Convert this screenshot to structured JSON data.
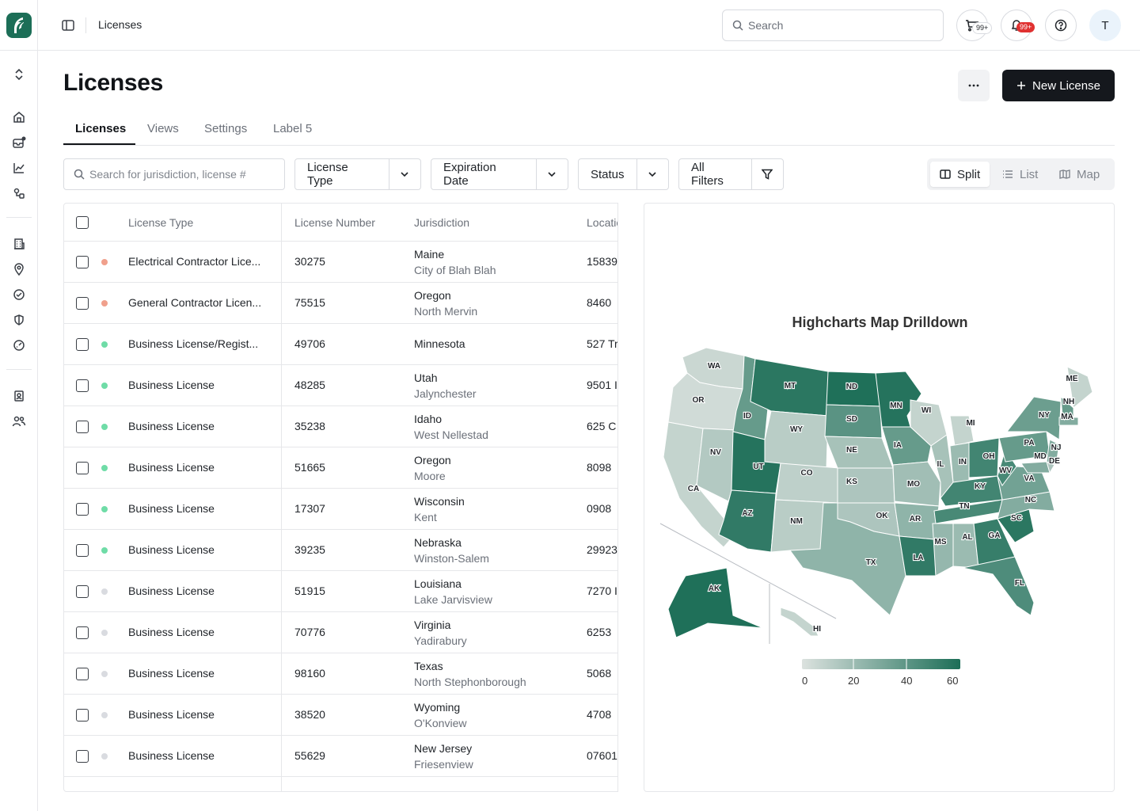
{
  "topbar": {
    "breadcrumb": "Licenses",
    "search_placeholder": "Search",
    "cart_badge": "99+",
    "notif_badge": "99+",
    "avatar_initial": "T"
  },
  "page": {
    "title": "Licenses",
    "new_button": "New License"
  },
  "tabs": [
    {
      "label": "Licenses",
      "active": true
    },
    {
      "label": "Views"
    },
    {
      "label": "Settings"
    },
    {
      "label": "Label 5"
    }
  ],
  "filters": {
    "search_placeholder": "Search for jurisdiction, license #",
    "license_type": "License Type",
    "expiration_date": "Expiration Date",
    "status": "Status",
    "all_filters": "All Filters"
  },
  "view_toggle": {
    "split": "Split",
    "list": "List",
    "map": "Map",
    "active": "split"
  },
  "table": {
    "headers": [
      "License Type",
      "License Number",
      "Jurisdiction",
      "Location"
    ],
    "rows": [
      {
        "status": "#f0a08c",
        "type": "Electrical Contractor Lice...",
        "number": "30275",
        "state": "Maine",
        "city": "City of Blah Blah",
        "location": "15839"
      },
      {
        "status": "#f0a08c",
        "type": "General Contractor Licen...",
        "number": "75515",
        "state": "Oregon",
        "city": "North Mervin",
        "location": "8460"
      },
      {
        "status": "#6fdca7",
        "type": "Business License/Regist...",
        "number": "49706",
        "state": "Minnesota",
        "city": "",
        "location": "527 Tr"
      },
      {
        "status": "#6fdca7",
        "type": "Business License",
        "number": "48285",
        "state": "Utah",
        "city": "Jalynchester",
        "location": "9501 I"
      },
      {
        "status": "#6fdca7",
        "type": "Business License",
        "number": "35238",
        "state": "Idaho",
        "city": "West Nellestad",
        "location": "625 C"
      },
      {
        "status": "#6fdca7",
        "type": "Business License",
        "number": "51665",
        "state": "Oregon",
        "city": "Moore",
        "location": "8098"
      },
      {
        "status": "#6fdca7",
        "type": "Business License",
        "number": "17307",
        "state": "Wisconsin",
        "city": "Kent",
        "location": "0908"
      },
      {
        "status": "#6fdca7",
        "type": "Business License",
        "number": "39235",
        "state": "Nebraska",
        "city": "Winston-Salem",
        "location": "29923"
      },
      {
        "status": "#d9dbe0",
        "type": "Business License",
        "number": "51915",
        "state": "Louisiana",
        "city": "Lake Jarvisview",
        "location": "7270 I"
      },
      {
        "status": "#d9dbe0",
        "type": "Business License",
        "number": "70776",
        "state": "Virginia",
        "city": "Yadirabury",
        "location": "6253"
      },
      {
        "status": "#d9dbe0",
        "type": "Business License",
        "number": "98160",
        "state": "Texas",
        "city": "North Stephonborough",
        "location": "5068"
      },
      {
        "status": "#d9dbe0",
        "type": "Business License",
        "number": "38520",
        "state": "Wyoming",
        "city": "O'Konview",
        "location": "4708"
      },
      {
        "status": "#d9dbe0",
        "type": "Business License",
        "number": "55629",
        "state": "New Jersey",
        "city": "Friesenview",
        "location": "07601"
      }
    ]
  },
  "map": {
    "title": "Highcharts Map Drilldown",
    "legend_ticks": [
      "0",
      "20",
      "40",
      "60"
    ],
    "states": [
      {
        "code": "WA",
        "value": 6
      },
      {
        "code": "OR",
        "value": 4
      },
      {
        "code": "CA",
        "value": 8
      },
      {
        "code": "NV",
        "value": 14
      },
      {
        "code": "ID",
        "value": 40
      },
      {
        "code": "MT",
        "value": 60
      },
      {
        "code": "WY",
        "value": 12
      },
      {
        "code": "UT",
        "value": 62
      },
      {
        "code": "AZ",
        "value": 58
      },
      {
        "code": "CO",
        "value": 10
      },
      {
        "code": "NM",
        "value": 12
      },
      {
        "code": "ND",
        "value": 64
      },
      {
        "code": "SD",
        "value": 44
      },
      {
        "code": "NE",
        "value": 18
      },
      {
        "code": "KS",
        "value": 16
      },
      {
        "code": "OK",
        "value": 16
      },
      {
        "code": "TX",
        "value": 26
      },
      {
        "code": "MN",
        "value": 62
      },
      {
        "code": "IA",
        "value": 40
      },
      {
        "code": "MO",
        "value": 20
      },
      {
        "code": "AR",
        "value": 26
      },
      {
        "code": "LA",
        "value": 58
      },
      {
        "code": "WI",
        "value": 8
      },
      {
        "code": "IL",
        "value": 18
      },
      {
        "code": "MI",
        "value": 8
      },
      {
        "code": "IN",
        "value": 22
      },
      {
        "code": "OH",
        "value": 52
      },
      {
        "code": "KY",
        "value": 52
      },
      {
        "code": "TN",
        "value": 50
      },
      {
        "code": "MS",
        "value": 24
      },
      {
        "code": "AL",
        "value": 22
      },
      {
        "code": "GA",
        "value": 56
      },
      {
        "code": "FL",
        "value": 48
      },
      {
        "code": "SC",
        "value": 60
      },
      {
        "code": "NC",
        "value": 30
      },
      {
        "code": "VA",
        "value": 36
      },
      {
        "code": "WV",
        "value": 50
      },
      {
        "code": "PA",
        "value": 40
      },
      {
        "code": "NY",
        "value": 38
      },
      {
        "code": "NJ",
        "value": 30
      },
      {
        "code": "DE",
        "value": 16
      },
      {
        "code": "MD",
        "value": 30
      },
      {
        "code": "ME",
        "value": 8
      },
      {
        "code": "NH",
        "value": 40
      },
      {
        "code": "MA",
        "value": 30
      },
      {
        "code": "AK",
        "value": 64
      },
      {
        "code": "HI",
        "value": 8
      }
    ]
  }
}
